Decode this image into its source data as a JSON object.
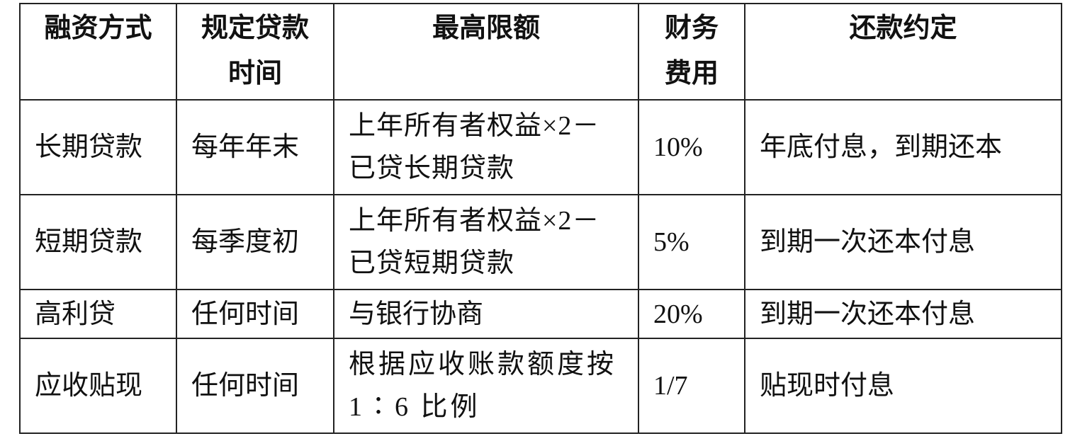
{
  "table": {
    "headers": [
      "融资方式",
      "规定贷款时间",
      "最高限额",
      "财务费用",
      "还款约定"
    ],
    "rows": [
      [
        "长期贷款",
        "每年年末",
        "上年所有者权益×2－已贷长期贷款",
        "10%",
        "年底付息，到期还本"
      ],
      [
        "短期贷款",
        "每季度初",
        "上年所有者权益×2－已贷短期贷款",
        "5%",
        "到期一次还本付息"
      ],
      [
        "高利贷",
        "任何时间",
        "与银行协商",
        "20%",
        "到期一次还本付息"
      ],
      [
        "应收贴现",
        "任何时间",
        "根据应收账款额度按 1∶6 比例",
        "1/7",
        "贴现时付息"
      ]
    ]
  }
}
